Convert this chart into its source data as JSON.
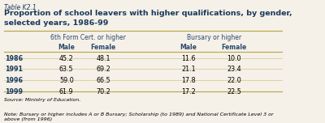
{
  "table_label": "Table K2.1",
  "title_line1": "Proportion of school leavers with higher qualifications, by gender,",
  "title_line2": "selected years, 1986-99",
  "col_group1": "6th Form Cert. or higher",
  "col_group2": "Bursary or higher",
  "col_sub1": "Male",
  "col_sub2": "Female",
  "col_sub3": "Male",
  "col_sub4": "Female",
  "years": [
    "1986",
    "1991",
    "1996",
    "1999"
  ],
  "g1_male": [
    45.2,
    63.5,
    59.0,
    61.9
  ],
  "g1_female": [
    48.1,
    69.2,
    66.5,
    70.2
  ],
  "g2_male": [
    11.6,
    21.1,
    17.8,
    17.2
  ],
  "g2_female": [
    10.0,
    23.4,
    22.0,
    22.5
  ],
  "source": "Source: Ministry of Education.",
  "note": "Note: Bursary or higher includes A or B Bursary; Scholarship (to 1989) and National Certificate Level 3 or\nabove (from 1996)",
  "bg_color": "#f5f0e8",
  "header_color": "#b5a642",
  "text_color_body": "#000000",
  "title_color": "#1a3a5c",
  "label_color": "#2c4a6e"
}
